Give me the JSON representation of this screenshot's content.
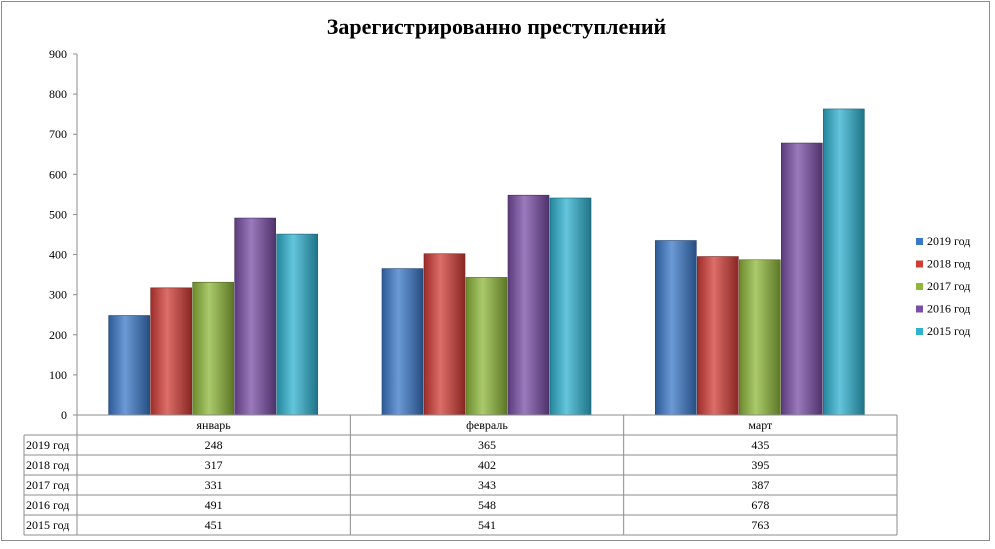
{
  "chart_data": {
    "type": "bar",
    "title": "Зарегистрированно преступлений",
    "categories": [
      "январь",
      "февраль",
      "март"
    ],
    "series": [
      {
        "name": "2019  год",
        "color": "#3a78c8",
        "values": [
          248,
          365,
          435
        ]
      },
      {
        "name": "2018  год",
        "color": "#d23c36",
        "values": [
          317,
          402,
          395
        ]
      },
      {
        "name": "2017  год",
        "color": "#8fb83a",
        "values": [
          331,
          343,
          387
        ]
      },
      {
        "name": "2016  год",
        "color": "#7a4ea6",
        "values": [
          491,
          548,
          678
        ]
      },
      {
        "name": "2015  год",
        "color": "#2fb2d0",
        "values": [
          451,
          541,
          763
        ]
      }
    ],
    "ylim": [
      0,
      900
    ],
    "yticks": [
      0,
      100,
      200,
      300,
      400,
      500,
      600,
      700,
      800,
      900
    ],
    "grid": false,
    "legend": "right",
    "data_table": true
  }
}
